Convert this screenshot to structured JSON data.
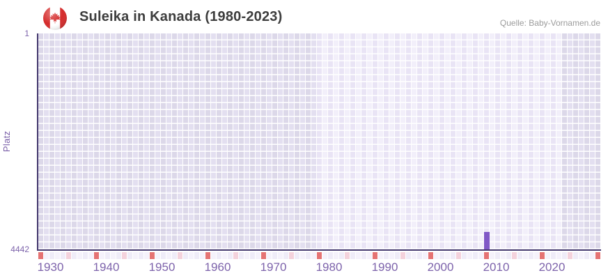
{
  "header": {
    "title": "Suleika in Kanada (1980-2023)",
    "source": "Quelle: Baby-Vornamen.de",
    "flag_icon": "canada-flag-icon"
  },
  "colors": {
    "bar": "#8058c6",
    "axis_line": "#44396e",
    "tick_text": "#7d63ab",
    "y_label_text": "#7a5fa8",
    "title_text": "#3d3d3d",
    "source_text": "#9b9b9b",
    "marker_major": "#e57373",
    "marker_minor": "#f4d2dc",
    "cell_outside_dark": "#dcd8e9",
    "cell_outside_light": "#e3dff0",
    "cell_period_dark": "#e9e4f5",
    "cell_period_light": "#f2effa"
  },
  "chart_data": {
    "type": "bar",
    "title": "Suleika in Kanada (1980-2023)",
    "ylabel": "Platz",
    "xlabel": "",
    "y_axis": {
      "top": "1",
      "bottom": "4442",
      "min": 1,
      "max": 4442,
      "inverted": true
    },
    "x_axis": {
      "start_year": 1930,
      "end_year": 2031,
      "tick_labels": [
        "1930",
        "1940",
        "1950",
        "1960",
        "1970",
        "1980",
        "1990",
        "2000",
        "2010",
        "2020"
      ]
    },
    "highlight_period_years": [
      1980,
      2023
    ],
    "bars": [
      {
        "year": 2010,
        "platz": 4080
      }
    ],
    "decade_markers": [
      1930,
      1940,
      1950,
      1960,
      1970,
      1980,
      1990,
      2000,
      2010,
      2020,
      2030
    ],
    "half_decade_markers": [
      1935,
      1945,
      1955,
      1965,
      1975,
      1985,
      1995,
      2005,
      2015,
      2025
    ],
    "grid": "on",
    "legend": "none"
  }
}
